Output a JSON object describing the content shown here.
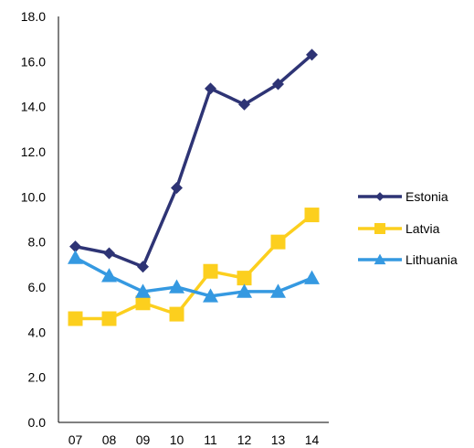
{
  "chart_data": {
    "type": "line",
    "x": [
      "07",
      "08",
      "09",
      "10",
      "11",
      "12",
      "13",
      "14"
    ],
    "ylim": [
      0,
      18
    ],
    "yticks": [
      "0.0",
      "2.0",
      "4.0",
      "6.0",
      "8.0",
      "10.0",
      "12.0",
      "14.0",
      "16.0",
      "18.0"
    ],
    "series": [
      {
        "name": "Estonia",
        "color": "#2E3475",
        "marker": "diamond",
        "values": [
          7.8,
          7.5,
          6.9,
          10.4,
          14.8,
          14.1,
          15.0,
          16.3
        ]
      },
      {
        "name": "Latvia",
        "color": "#FCCF1E",
        "marker": "square",
        "values": [
          4.6,
          4.6,
          5.3,
          4.8,
          6.7,
          6.4,
          8.0,
          9.2
        ]
      },
      {
        "name": "Lithuania",
        "color": "#3599E1",
        "marker": "triangle",
        "values": [
          7.3,
          6.5,
          5.8,
          6.0,
          5.6,
          5.8,
          5.8,
          6.4
        ]
      }
    ],
    "grid": false,
    "legend_position": "right"
  }
}
